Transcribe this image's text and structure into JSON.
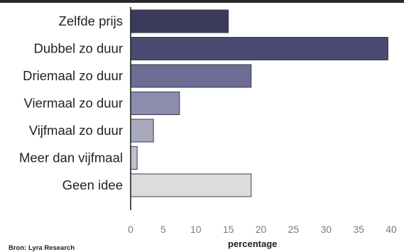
{
  "chart_data": {
    "type": "bar",
    "orientation": "horizontal",
    "categories": [
      "Zelfde prijs",
      "Dubbel zo duur",
      "Driemaal zo duur",
      "Viermaal zo duur",
      "Vijfmaal zo duur",
      "Meer dan vijfmaal",
      "Geen idee"
    ],
    "values": [
      15,
      39.5,
      18.5,
      7.5,
      3.5,
      1,
      18.5
    ],
    "colors": [
      "#3a3a5c",
      "#4a4a70",
      "#6c6c94",
      "#8c8cae",
      "#a8a8bc",
      "#c0c0cc",
      "#dcdcdc"
    ],
    "xlabel": "percentage",
    "ylabel": "",
    "xlim": [
      0,
      40
    ],
    "xticks": [
      0,
      5,
      10,
      15,
      20,
      25,
      30,
      35,
      40
    ],
    "grid": false
  },
  "source": "Bron: Lyra Research"
}
